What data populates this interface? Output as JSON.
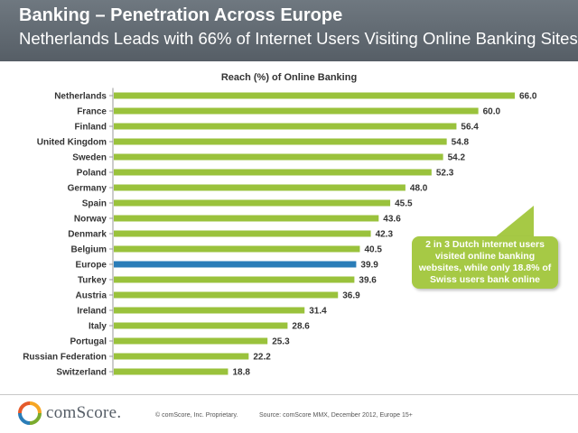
{
  "header": {
    "title": "Banking – Penetration Across Europe",
    "subtitle": "Netherlands Leads with 66% of Internet Users Visiting Online Banking Sites"
  },
  "chart_data": {
    "type": "bar",
    "orientation": "horizontal",
    "title": "Reach (%) of Online Banking",
    "xlabel": "",
    "ylabel": "",
    "xlim": [
      0,
      66
    ],
    "categories": [
      "Netherlands",
      "France",
      "Finland",
      "United Kingdom",
      "Sweden",
      "Poland",
      "Germany",
      "Spain",
      "Norway",
      "Denmark",
      "Belgium",
      "Europe",
      "Turkey",
      "Austria",
      "Ireland",
      "Italy",
      "Portugal",
      "Russian Federation",
      "Switzerland"
    ],
    "values": [
      66.0,
      60.0,
      56.4,
      54.8,
      54.2,
      52.3,
      48.0,
      45.5,
      43.6,
      42.3,
      40.5,
      39.9,
      39.6,
      36.9,
      31.4,
      28.6,
      25.3,
      22.2,
      18.8
    ],
    "value_labels": [
      "66.0",
      "60.0",
      "56.4",
      "54.8",
      "54.2",
      "52.3",
      "48.0",
      "45.5",
      "43.6",
      "42.3",
      "40.5",
      "39.9",
      "39.6",
      "36.9",
      "31.4",
      "28.6",
      "25.3",
      "22.2",
      "18.8"
    ],
    "highlight_category": "Europe",
    "colors": {
      "bar": "#9ac23c",
      "highlight": "#2a7db8",
      "axis": "#999999",
      "label": "#333333"
    }
  },
  "callout": {
    "text": "2 in 3 Dutch internet users visited online banking websites, while only 18.8% of Swiss users bank online",
    "color": "#a6c945"
  },
  "footer": {
    "logo_text": "comScore.",
    "copyright": "© comScore, Inc.   Proprietary.",
    "source": "Source: comScore MMX, December 2012, Europe 15+"
  }
}
